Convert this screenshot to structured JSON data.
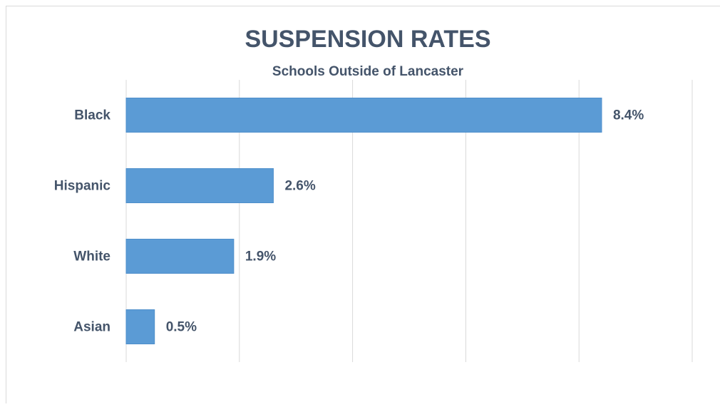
{
  "chart_data": {
    "type": "bar",
    "orientation": "horizontal",
    "title": "SUSPENSION RATES",
    "subtitle": "Schools Outside of Lancaster",
    "categories": [
      "Black",
      "Hispanic",
      "White",
      "Asian"
    ],
    "values": [
      8.4,
      2.6,
      1.9,
      0.5
    ],
    "value_labels": [
      "8.4%",
      "2.6%",
      "1.9%",
      "0.5%"
    ],
    "color": "#5b9bd5",
    "xlim": [
      0,
      10
    ],
    "xticks": [
      0,
      2,
      4,
      6,
      8,
      10
    ],
    "grid": true
  }
}
